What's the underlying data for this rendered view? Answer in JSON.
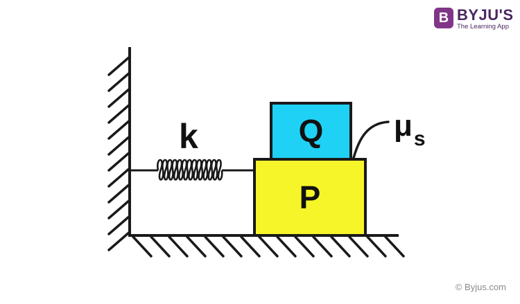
{
  "brand": {
    "badge": "B",
    "name": "BYJU'S",
    "tagline": "The Learning App",
    "color": "#813588"
  },
  "labels": {
    "spring_constant": "k",
    "friction_mu": "μ",
    "friction_sub": "s",
    "block_top": "Q",
    "block_bottom": "P"
  },
  "colors": {
    "block_top_fill": "#1fd2f5",
    "block_bottom_fill": "#f5f52a",
    "stroke": "#1a1a1a"
  },
  "copyright": "© Byjus.com"
}
